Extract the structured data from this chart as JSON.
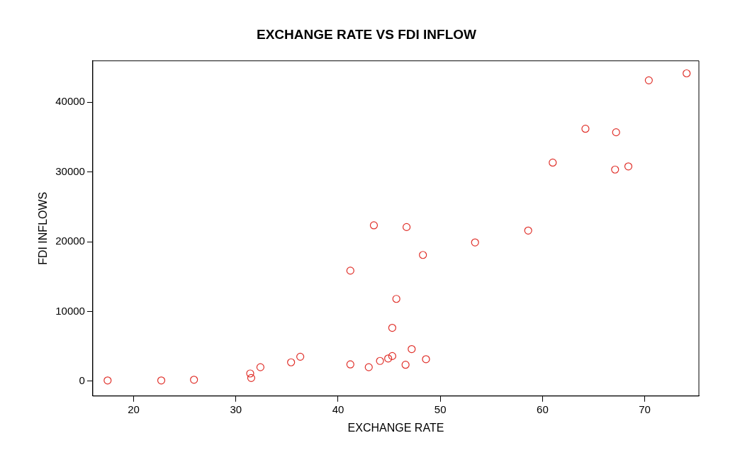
{
  "chart_data": {
    "type": "scatter",
    "title": "EXCHANGE RATE VS FDI INFLOW",
    "xlabel": "EXCHANGE RATE",
    "ylabel": "FDI INFLOWS",
    "x": [
      17.45,
      22.7,
      25.9,
      31.4,
      31.5,
      32.4,
      35.4,
      36.3,
      41.2,
      41.2,
      43.0,
      43.5,
      44.1,
      44.9,
      45.3,
      45.3,
      45.7,
      46.6,
      46.7,
      47.2,
      48.6,
      48.3,
      53.4,
      58.6,
      61.0,
      64.2,
      67.1,
      67.2,
      68.4,
      70.4,
      74.1
    ],
    "series": [
      {
        "color": "#e0302a",
        "values": [
          100,
          100,
          200,
          1100,
          450,
          2000,
          2700,
          3500,
          2400,
          15850,
          2000,
          22350,
          2900,
          3250,
          3600,
          7650,
          11800,
          2350,
          22100,
          4600,
          3150,
          18100,
          19900,
          21600,
          31350,
          36200,
          30350,
          35700,
          30800,
          43150,
          44150
        ]
      }
    ],
    "xlim": [
      16,
      75.3
    ],
    "ylim": [
      -2135,
      45950
    ],
    "xticks": [
      20,
      30,
      40,
      50,
      60,
      70
    ],
    "yticks": [
      0,
      10000,
      20000,
      30000,
      40000
    ],
    "grid": false,
    "legend": false,
    "marker": "circle"
  }
}
